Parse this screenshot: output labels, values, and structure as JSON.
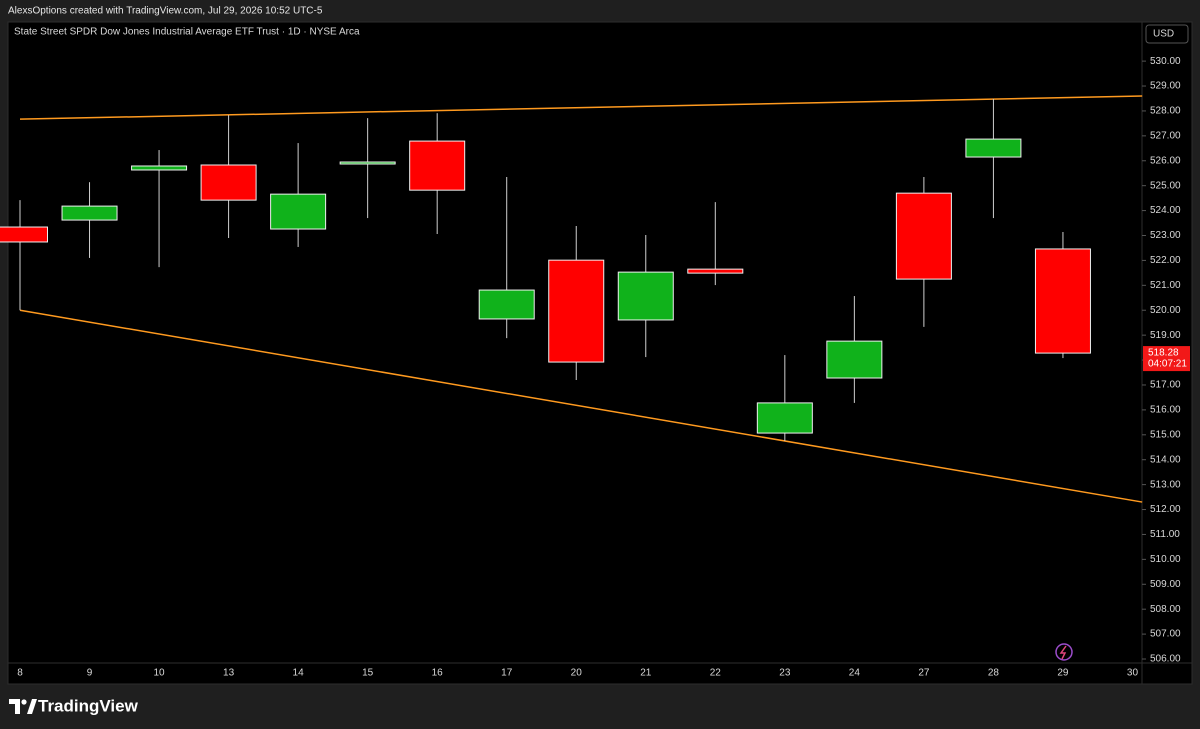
{
  "header": {
    "text": "AlexsOptions created with TradingView.com, Jul 29, 2026 10:52 UTC-5"
  },
  "footer": {
    "brand": "TradingView"
  },
  "chart_data": {
    "type": "candlestick",
    "title": "State Street SPDR Dow Jones Industrial Average ETF Trust · 1D · NYSE Arca",
    "currency": "USD",
    "categories": [
      "8",
      "9",
      "10",
      "13",
      "14",
      "15",
      "16",
      "17",
      "20",
      "21",
      "22",
      "23",
      "24",
      "27",
      "28",
      "29",
      "30"
    ],
    "open": [
      523.34,
      523.62,
      525.63,
      525.83,
      523.26,
      525.87,
      526.79,
      519.65,
      522.01,
      519.61,
      521.65,
      515.07,
      517.28,
      524.7,
      526.15,
      522.46,
      null
    ],
    "high": [
      524.42,
      525.14,
      526.43,
      527.83,
      526.71,
      527.71,
      527.91,
      525.35,
      523.38,
      523.02,
      524.34,
      518.2,
      520.57,
      525.35,
      528.48,
      523.14,
      null
    ],
    "low": [
      520.0,
      522.1,
      521.73,
      522.9,
      522.54,
      523.7,
      523.06,
      518.88,
      517.2,
      518.12,
      521.01,
      514.75,
      516.28,
      519.33,
      523.7,
      518.08,
      null
    ],
    "close": [
      522.74,
      524.18,
      525.79,
      524.42,
      524.66,
      525.95,
      524.82,
      520.81,
      517.92,
      521.53,
      521.49,
      516.28,
      518.76,
      521.25,
      526.87,
      518.28,
      null
    ],
    "up_color": "#10b21b",
    "down_color": "#ff0000",
    "ylim": [
      505.84,
      531.57
    ],
    "yticks": [
      {
        "value": 506,
        "label": "506.00"
      },
      {
        "value": 507,
        "label": "507.00"
      },
      {
        "value": 508,
        "label": "508.00"
      },
      {
        "value": 509,
        "label": "509.00"
      },
      {
        "value": 510,
        "label": "510.00"
      },
      {
        "value": 511,
        "label": "511.00"
      },
      {
        "value": 512,
        "label": "512.00"
      },
      {
        "value": 513,
        "label": "513.00"
      },
      {
        "value": 514,
        "label": "514.00"
      },
      {
        "value": 515,
        "label": "515.00"
      },
      {
        "value": 516,
        "label": "516.00"
      },
      {
        "value": 517,
        "label": "517.00"
      },
      {
        "value": 518,
        "label": "518.00"
      },
      {
        "value": 519,
        "label": "519.00"
      },
      {
        "value": 520,
        "label": "520.00"
      },
      {
        "value": 521,
        "label": "521.00"
      },
      {
        "value": 522,
        "label": "522.00"
      },
      {
        "value": 523,
        "label": "523.00"
      },
      {
        "value": 524,
        "label": "524.00"
      },
      {
        "value": 525,
        "label": "525.00"
      },
      {
        "value": 526,
        "label": "526.00"
      },
      {
        "value": 527,
        "label": "527.00"
      },
      {
        "value": 528,
        "label": "528.00"
      },
      {
        "value": 529,
        "label": "529.00"
      },
      {
        "value": 530,
        "label": "530.00"
      }
    ],
    "trendlines": [
      {
        "color": "#ff9a1f",
        "x": [
          0,
          16.14
        ],
        "values": [
          527.67,
          528.6
        ]
      },
      {
        "color": "#ff9a1f",
        "x": [
          0,
          16.14
        ],
        "values": [
          520.0,
          512.3
        ]
      }
    ],
    "last_price": {
      "value": 518.28,
      "countdown": "04:07:21",
      "color": "#f21818"
    }
  }
}
